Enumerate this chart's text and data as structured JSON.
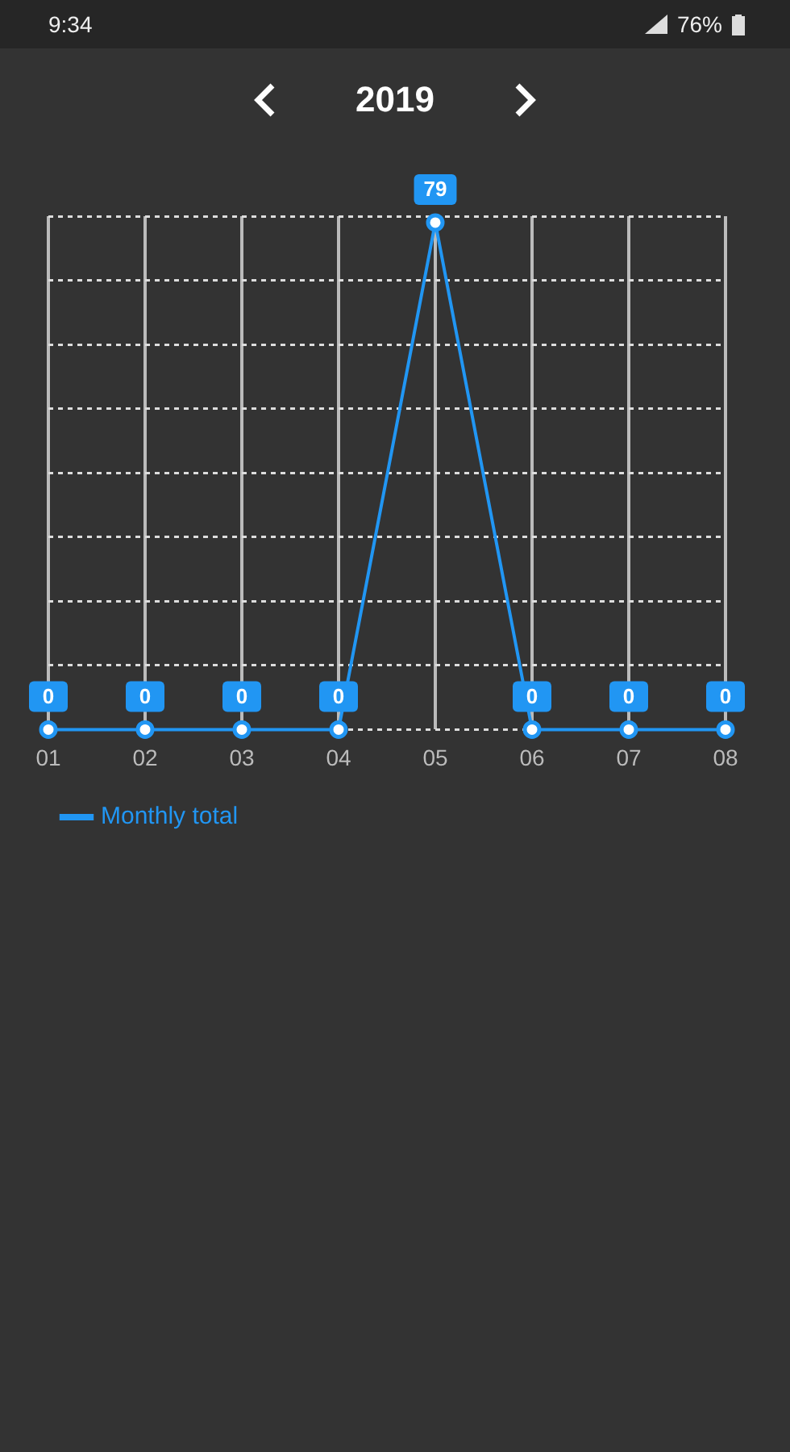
{
  "chart_data": {
    "type": "line",
    "title": "2019",
    "annotations": [
      "9:34",
      "76%"
    ],
    "categories": [
      "01",
      "02",
      "03",
      "04",
      "05",
      "06",
      "07",
      "08"
    ],
    "series": [
      {
        "name": "Monthly total",
        "color": "#2196f3",
        "values": [
          0,
          0,
          0,
          0,
          79,
          0,
          0,
          0
        ]
      }
    ],
    "grid": true,
    "legend": "bottom left",
    "marker": "circle",
    "line_style": "solid",
    "data_labels": true,
    "tick_labels": "x"
  }
}
